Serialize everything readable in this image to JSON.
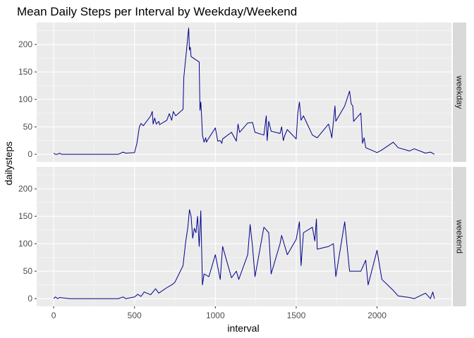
{
  "chart_data": {
    "type": "line",
    "title": "Mean Daily Steps per Interval by Weekday/Weekend",
    "xlabel": "interval",
    "ylabel": "dailysteps",
    "xlim": [
      -105,
      2460
    ],
    "ylim": [
      -14,
      240
    ],
    "x_ticks": [
      0,
      500,
      1000,
      1500,
      2000
    ],
    "x_tick_labels": [
      "0",
      "500",
      "1000",
      "1500",
      "2000"
    ],
    "y_ticks": [
      0,
      50,
      100,
      150,
      200
    ],
    "y_tick_labels": [
      "0",
      "50",
      "100",
      "150",
      "200"
    ],
    "grid": true,
    "colors": {
      "line": "#00008b",
      "panel_bg": "#ebebeb",
      "grid_major": "#ffffff",
      "strip_bg": "#d9d9d9"
    },
    "facets": [
      {
        "label": "weekday",
        "series": [
          {
            "name": "weekday",
            "x": [
              0,
              10,
              25,
              35,
              50,
              100,
              200,
              300,
              400,
              430,
              445,
              500,
              515,
              530,
              540,
              555,
              600,
              610,
              615,
              625,
              635,
              650,
              655,
              700,
              715,
              730,
              740,
              755,
              800,
              805,
              815,
              825,
              830,
              835,
              840,
              845,
              850,
              900,
              905,
              910,
              915,
              920,
              930,
              940,
              945,
              950,
              1000,
              1015,
              1030,
              1040,
              1045,
              1100,
              1130,
              1140,
              1150,
              1200,
              1230,
              1245,
              1300,
              1315,
              1320,
              1330,
              1345,
              1400,
              1410,
              1420,
              1430,
              1445,
              1500,
              1510,
              1520,
              1530,
              1545,
              1600,
              1630,
              1700,
              1715,
              1720,
              1740,
              1745,
              1800,
              1830,
              1840,
              1850,
              1855,
              1900,
              1910,
              1920,
              1930,
              2000,
              2030,
              2100,
              2130,
              2200,
              2230,
              2300,
              2330,
              2355
            ],
            "y": [
              2,
              0,
              0,
              2,
              0,
              0,
              0,
              0,
              0,
              4,
              2,
              3,
              20,
              50,
              56,
              52,
              70,
              78,
              55,
              66,
              55,
              60,
              54,
              62,
              74,
              62,
              78,
              70,
              82,
              140,
              170,
              200,
              215,
              230,
              190,
              195,
              178,
              168,
              80,
              95,
              70,
              35,
              22,
              30,
              22,
              25,
              48,
              24,
              25,
              20,
              28,
              40,
              24,
              55,
              40,
              57,
              58,
              40,
              35,
              70,
              25,
              60,
              42,
              38,
              50,
              25,
              35,
              45,
              28,
              75,
              95,
              62,
              70,
              35,
              30,
              55,
              38,
              30,
              88,
              60,
              88,
              115,
              92,
              88,
              60,
              75,
              20,
              30,
              12,
              3,
              8,
              22,
              12,
              6,
              10,
              2,
              4,
              0
            ]
          }
        ]
      },
      {
        "label": "weekend",
        "series": [
          {
            "name": "weekend",
            "x": [
              0,
              10,
              25,
              35,
              100,
              200,
              300,
              400,
              430,
              445,
              500,
              520,
              540,
              560,
              600,
              630,
              650,
              700,
              730,
              750,
              800,
              815,
              830,
              840,
              850,
              860,
              870,
              880,
              890,
              900,
              910,
              920,
              930,
              960,
              1000,
              1030,
              1045,
              1100,
              1130,
              1145,
              1200,
              1215,
              1230,
              1245,
              1300,
              1330,
              1345,
              1400,
              1410,
              1430,
              1445,
              1500,
              1520,
              1530,
              1545,
              1600,
              1615,
              1625,
              1630,
              1700,
              1730,
              1745,
              1800,
              1830,
              1900,
              1930,
              1945,
              2000,
              2030,
              2100,
              2130,
              2200,
              2230,
              2300,
              2330,
              2345,
              2355
            ],
            "y": [
              0,
              3,
              0,
              2,
              0,
              0,
              0,
              0,
              3,
              0,
              3,
              8,
              4,
              12,
              7,
              18,
              10,
              20,
              25,
              30,
              60,
              100,
              130,
              162,
              150,
              110,
              128,
              120,
              150,
              95,
              160,
              25,
              45,
              40,
              80,
              35,
              95,
              38,
              50,
              35,
              80,
              135,
              95,
              40,
              130,
              120,
              45,
              100,
              115,
              95,
              80,
              108,
              140,
              60,
              120,
              130,
              105,
              145,
              90,
              95,
              100,
              40,
              140,
              50,
              50,
              70,
              25,
              88,
              35,
              15,
              5,
              2,
              0,
              10,
              0,
              12,
              0
            ]
          }
        ]
      }
    ]
  }
}
